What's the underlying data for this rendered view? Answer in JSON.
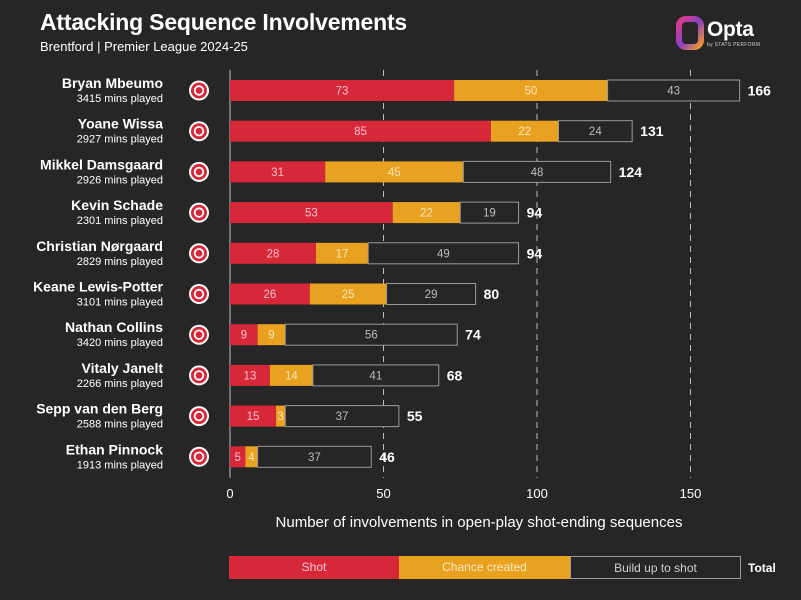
{
  "header": {
    "title": "Attacking Sequence Involvements",
    "subtitle": "Brentford | Premier League 2024-25"
  },
  "brand": {
    "name": "Opta",
    "tagline": "by STATS PERFORM"
  },
  "colors": {
    "background": "#262626",
    "shot": "#d7283a",
    "chance_created": "#e8a21f",
    "build_up": "#262626",
    "build_up_border": "#9a9a9a",
    "gridline": "#bdbdbd"
  },
  "icons": {
    "club_badge": "brentford-crest-icon",
    "brand": "opta-logo-icon"
  },
  "legend": {
    "shot": "Shot",
    "chance_created": "Chance created",
    "build_up": "Build up to shot",
    "total": "Total"
  },
  "chart_data": {
    "type": "bar",
    "orientation": "horizontal",
    "stacked": true,
    "title": "Attacking Sequence Involvements",
    "subtitle": "Brentford | Premier League 2024-25",
    "xlabel": "Number of involvements in open-play shot-ending sequences",
    "xlim": [
      0,
      166
    ],
    "xticks": [
      0,
      50,
      100,
      150
    ],
    "grid": "vertical dashed",
    "categories": [
      "Bryan Mbeumo",
      "Yoane Wissa",
      "Mikkel Damsgaard",
      "Kevin Schade",
      "Christian Nørgaard",
      "Keane Lewis-Potter",
      "Nathan Collins",
      "Vitaly Janelt",
      "Sepp van den Berg",
      "Ethan Pinnock"
    ],
    "minutes": [
      "3415 mins played",
      "2927 mins played",
      "2926 mins played",
      "2301 mins played",
      "2829 mins played",
      "3101 mins played",
      "3420 mins played",
      "2266 mins played",
      "2588 mins played",
      "1913 mins played"
    ],
    "series": [
      {
        "name": "Shot",
        "values": [
          73,
          85,
          31,
          53,
          28,
          26,
          9,
          13,
          15,
          5
        ]
      },
      {
        "name": "Chance created",
        "values": [
          50,
          22,
          45,
          22,
          17,
          25,
          9,
          14,
          3,
          4
        ]
      },
      {
        "name": "Build up to shot",
        "values": [
          43,
          24,
          48,
          19,
          49,
          29,
          56,
          41,
          37,
          37
        ]
      }
    ],
    "totals": [
      166,
      131,
      124,
      94,
      94,
      80,
      74,
      68,
      55,
      46
    ]
  }
}
